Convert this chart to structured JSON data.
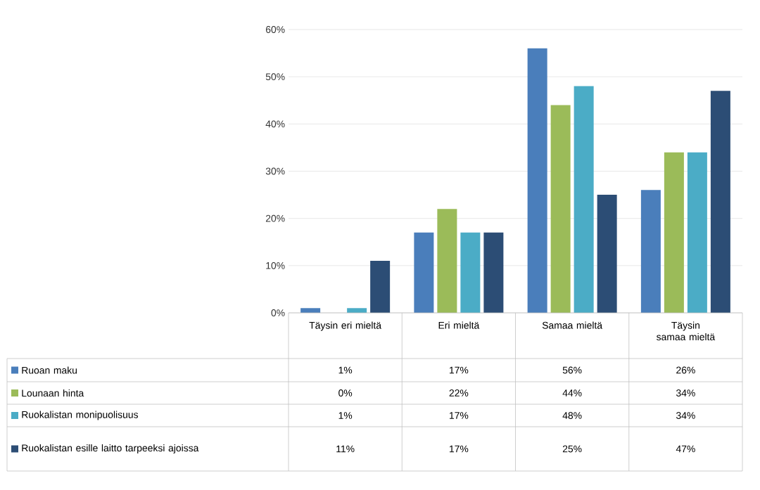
{
  "chart_data": {
    "type": "bar",
    "categories": [
      "Täysin eri mieltä",
      "Eri mieltä",
      "Samaa mieltä",
      "Täysin samaa mieltä"
    ],
    "series": [
      {
        "name": "Ruoan maku",
        "color": "#4a7ebb",
        "values": [
          1,
          17,
          56,
          26
        ],
        "value_labels": [
          "1%",
          "17%",
          "56%",
          "26%"
        ]
      },
      {
        "name": "Lounaan hinta",
        "color": "#9bbb59",
        "values": [
          0,
          22,
          44,
          34
        ],
        "value_labels": [
          "0%",
          "22%",
          "44%",
          "34%"
        ]
      },
      {
        "name": "Ruokalistan monipuolisuus",
        "color": "#4bacc6",
        "values": [
          1,
          17,
          48,
          34
        ],
        "value_labels": [
          "1%",
          "17%",
          "48%",
          "34%"
        ]
      },
      {
        "name": "Ruokalistan esille laitto tarpeeksi ajoissa",
        "color": "#2c4d75",
        "values": [
          11,
          17,
          25,
          47
        ],
        "value_labels": [
          "11%",
          "17%",
          "25%",
          "47%"
        ]
      }
    ],
    "ylim": [
      0,
      60
    ],
    "yticks": [
      {
        "value": 0,
        "label": "0%"
      },
      {
        "value": 10,
        "label": "10%"
      },
      {
        "value": 20,
        "label": "20%"
      },
      {
        "value": 30,
        "label": "30%"
      },
      {
        "value": 40,
        "label": "40%"
      },
      {
        "value": 50,
        "label": "50%"
      },
      {
        "value": 60,
        "label": "60%"
      }
    ],
    "grid": "y",
    "legend": "bottom"
  }
}
